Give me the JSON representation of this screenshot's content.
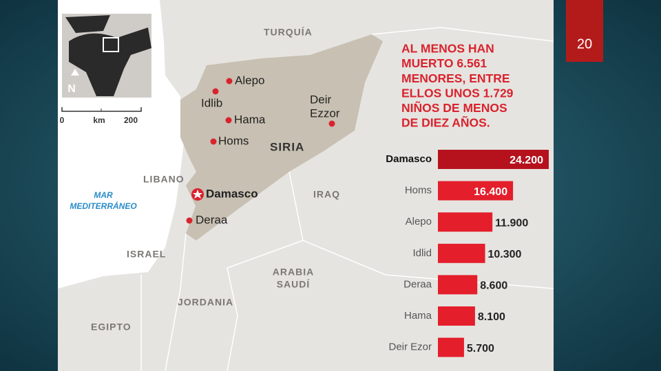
{
  "slide_number": "20",
  "headline": [
    "AL MENOS HAN",
    "MUERTO 6.561",
    "MENORES, ENTRE",
    "ELLOS UNOS 1.729",
    "NIÑOS DE MENOS",
    "DE DIEZ AÑOS."
  ],
  "map": {
    "countries": [
      "TURQUÍA",
      "SIRIA",
      "LIBANO",
      "IRAQ",
      "ISRAEL",
      "JORDANIA",
      "EGIPTO"
    ],
    "saudi": [
      "ARABIA",
      "SAUDÍ"
    ],
    "sea": [
      "MAR",
      "MEDITERRÁNEO"
    ],
    "cities": [
      "Alepo",
      "Idlib",
      "Hama",
      "Homs",
      "Damasco",
      "Deraa"
    ],
    "deir_ezzor": [
      "Deir",
      "Ezzor"
    ],
    "scale": {
      "start": "0",
      "unit": "km",
      "end": "200"
    },
    "north": "N"
  },
  "chart_data": {
    "type": "bar",
    "orientation": "horizontal",
    "categories": [
      "Damasco",
      "Homs",
      "Alepo",
      "Idlid",
      "Deraa",
      "Hama",
      "Deir Ezor"
    ],
    "values": [
      24200,
      16400,
      11900,
      10300,
      8600,
      8100,
      5700
    ],
    "value_labels": [
      "24.200",
      "16.400",
      "11.900",
      "10.300",
      "8.600",
      "8.100",
      "5.700"
    ],
    "colors": [
      "#b5121d",
      "#e41e2b",
      "#e41e2b",
      "#e41e2b",
      "#e41e2b",
      "#e41e2b",
      "#e41e2b"
    ]
  }
}
